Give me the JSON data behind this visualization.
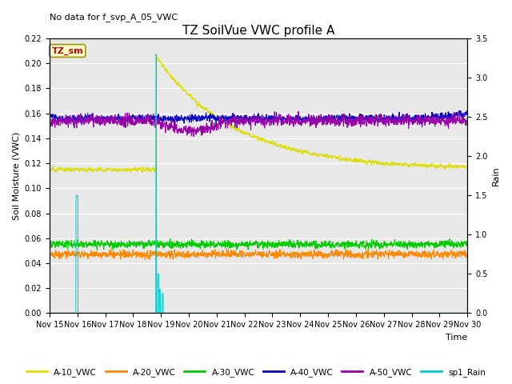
{
  "title": "TZ SoilVue VWC profile A",
  "subtitle": "No data for f_svp_A_05_VWC",
  "xlabel": "Time",
  "ylabel_left": "Soil Moisture (VWC)",
  "ylabel_right": "Rain",
  "ylim_left": [
    0.0,
    0.22
  ],
  "ylim_right": [
    0.0,
    3.5
  ],
  "background_color": "#e8e8e8",
  "colors": {
    "A-10_VWC": "#dddd00",
    "A-20_VWC": "#ff8800",
    "A-30_VWC": "#00cc00",
    "A-40_VWC": "#0000cc",
    "A-50_VWC": "#9900aa",
    "sp1_Rain": "#00cccc"
  },
  "legend_box_color": "#ffffcc",
  "legend_box_text": "TZ_sm",
  "legend_box_text_color": "#cc0000",
  "tick_labels": [
    "Nov 15",
    "Nov 16",
    "Nov 17",
    "Nov 18",
    "Nov 19",
    "Nov 20",
    "Nov 21",
    "Nov 22",
    "Nov 23",
    "Nov 24",
    "Nov 25",
    "Nov 26",
    "Nov 27",
    "Nov 28",
    "Nov 29",
    "Nov 30"
  ],
  "yticks_left": [
    0.0,
    0.02,
    0.04,
    0.06,
    0.08,
    0.1,
    0.12,
    0.14,
    0.16,
    0.18,
    0.2,
    0.22
  ],
  "yticks_right": [
    0.0,
    0.5,
    1.0,
    1.5,
    2.0,
    2.5,
    3.0,
    3.5
  ]
}
